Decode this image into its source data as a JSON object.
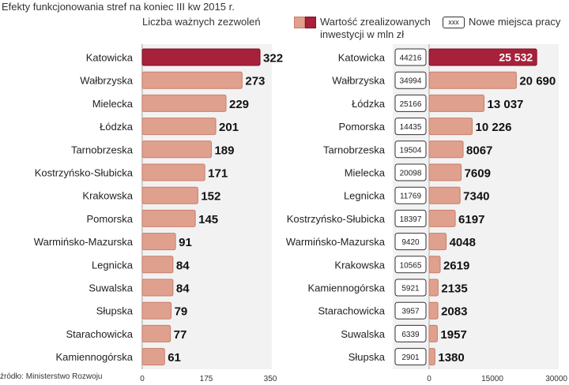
{
  "title": "Efekty funkcjonowania stref na koniec III kw 2015 r.",
  "source": "źródło: Ministerstwo Rozwoju",
  "colors": {
    "highlight": "#a7213a",
    "bar": "#e0a08e",
    "bar_stroke": "#c97d6a",
    "panel": "#f2f2f2"
  },
  "legend": {
    "investments_label_line1": "Wartość zrealizowanych",
    "investments_label_line2": "inwestycji w mln zł",
    "jobs_box": "xxx",
    "jobs_label": "Nowe miejsca pracy"
  },
  "chart_data": [
    {
      "type": "bar",
      "orientation": "horizontal",
      "title": "Liczba ważnych zezwoleń",
      "categories": [
        "Katowicka",
        "Wałbrzyska",
        "Mielecka",
        "Łódzka",
        "Tarnobrzeska",
        "Kostrzyńsko-Słubicka",
        "Krakowska",
        "Pomorska",
        "Warmińsko-Mazurska",
        "Legnicka",
        "Suwalska",
        "Słupska",
        "Starachowicka",
        "Kamiennogórska"
      ],
      "values": [
        322,
        273,
        229,
        201,
        189,
        171,
        152,
        145,
        91,
        84,
        84,
        79,
        77,
        61
      ],
      "value_labels": [
        "322",
        "273",
        "229",
        "201",
        "189",
        "171",
        "152",
        "145",
        "91",
        "84",
        "84",
        "79",
        "77",
        "61"
      ],
      "xlim": [
        0,
        350
      ],
      "xticks": [
        "0",
        "175",
        "350"
      ],
      "highlight_index": 0
    },
    {
      "type": "bar",
      "orientation": "horizontal",
      "title": "Wartość zrealizowanych inwestycji w mln zł",
      "categories": [
        "Katowicka",
        "Wałbrzyska",
        "Łódzka",
        "Pomorska",
        "Tarnobrzeska",
        "Mielecka",
        "Legnicka",
        "Kostrzyńsko-Słubicka",
        "Warmińsko-Mazurska",
        "Krakowska",
        "Kamiennogórska",
        "Starachowicka",
        "Suwalska",
        "Słupska"
      ],
      "values": [
        25532,
        20690,
        13037,
        10226,
        8067,
        7609,
        7340,
        6197,
        4048,
        2619,
        2135,
        2083,
        1957,
        1380
      ],
      "value_labels": [
        "25 532",
        "20 690",
        "13 037",
        "10 226",
        "8067",
        "7609",
        "7340",
        "6197",
        "4048",
        "2619",
        "2135",
        "2083",
        "1957",
        "1380"
      ],
      "jobs": [
        "44216",
        "34994",
        "25166",
        "14435",
        "19504",
        "20098",
        "11769",
        "18397",
        "9420",
        "10565",
        "5921",
        "3957",
        "6339",
        "2901"
      ],
      "xlim": [
        0,
        30000
      ],
      "xticks": [
        "0",
        "15000",
        "30000"
      ],
      "highlight_index": 0
    }
  ]
}
